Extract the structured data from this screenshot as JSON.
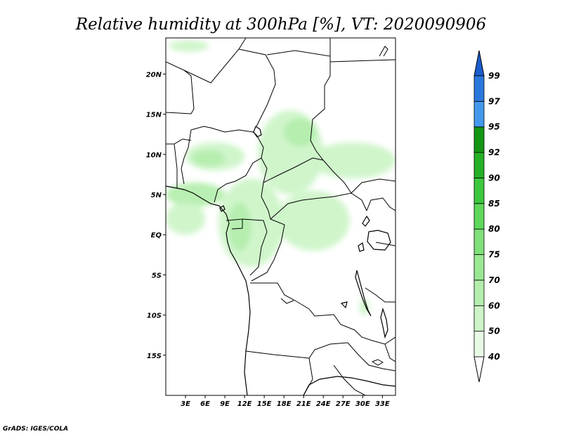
{
  "title": "Relative humidity at 300hPa [%], VT: 2020090906",
  "credit": "GrADS: IGES/COLA",
  "chart_data": {
    "type": "heatmap",
    "title": "Relative humidity at 300hPa [%], VT: 2020090906",
    "variable": "Relative humidity",
    "level": "300hPa",
    "units": "%",
    "valid_time": "2020090906",
    "lon_range": [
      0,
      35
    ],
    "lat_range": [
      -20,
      24.5
    ],
    "x_ticks": [
      {
        "value": 3,
        "label": "3E"
      },
      {
        "value": 6,
        "label": "6E"
      },
      {
        "value": 9,
        "label": "9E"
      },
      {
        "value": 12,
        "label": "12E"
      },
      {
        "value": 15,
        "label": "15E"
      },
      {
        "value": 18,
        "label": "18E"
      },
      {
        "value": 21,
        "label": "21E"
      },
      {
        "value": 24,
        "label": "24E"
      },
      {
        "value": 27,
        "label": "27E"
      },
      {
        "value": 30,
        "label": "30E"
      },
      {
        "value": 33,
        "label": "33E"
      }
    ],
    "y_ticks": [
      {
        "value": 20,
        "label": "20N"
      },
      {
        "value": 15,
        "label": "15N"
      },
      {
        "value": 10,
        "label": "10N"
      },
      {
        "value": 5,
        "label": "5N"
      },
      {
        "value": 0,
        "label": "EQ"
      },
      {
        "value": -5,
        "label": "5S"
      },
      {
        "value": -10,
        "label": "10S"
      },
      {
        "value": -15,
        "label": "15S"
      }
    ],
    "colorbar": {
      "levels": [
        "40",
        "50",
        "60",
        "70",
        "75",
        "80",
        "85",
        "90",
        "92",
        "95",
        "97",
        "99"
      ],
      "colors": [
        "#e8fae6",
        "#cdf4c8",
        "#b4eeae",
        "#9ae894",
        "#80e07a",
        "#5ed85a",
        "#3cc83c",
        "#26b026",
        "#149614",
        "#4499ee",
        "#2a78de",
        "#1a5ccc"
      ],
      "below_color": "#ffffff",
      "above_color": "#1a5ccc"
    },
    "humid_regions": [
      {
        "lon": [
          0.5,
          6.5
        ],
        "lat": [
          22.8,
          24.2
        ],
        "level": 1
      },
      {
        "lon": [
          3,
          12
        ],
        "lat": [
          8,
          11.5
        ],
        "level": 1
      },
      {
        "lon": [
          4,
          9
        ],
        "lat": [
          8.5,
          10.5
        ],
        "level": 2
      },
      {
        "lon": [
          0,
          9
        ],
        "lat": [
          3.5,
          6.5
        ],
        "level": 2
      },
      {
        "lon": [
          8,
          18
        ],
        "lat": [
          -4,
          7
        ],
        "level": 1
      },
      {
        "lon": [
          9.5,
          13
        ],
        "lat": [
          -2,
          4
        ],
        "level": 2
      },
      {
        "lon": [
          14,
          24
        ],
        "lat": [
          5,
          15.5
        ],
        "level": 1
      },
      {
        "lon": [
          18,
          23
        ],
        "lat": [
          11,
          14.5
        ],
        "level": 2
      },
      {
        "lon": [
          22,
          35
        ],
        "lat": [
          7,
          11.5
        ],
        "level": 1
      },
      {
        "lon": [
          17,
          28
        ],
        "lat": [
          -2,
          5.5
        ],
        "level": 1
      },
      {
        "lon": [
          0,
          6
        ],
        "lat": [
          0,
          4
        ],
        "level": 1
      },
      {
        "lon": [
          29.5,
          31
        ],
        "lat": [
          -10,
          -8
        ],
        "level": 1
      }
    ]
  }
}
